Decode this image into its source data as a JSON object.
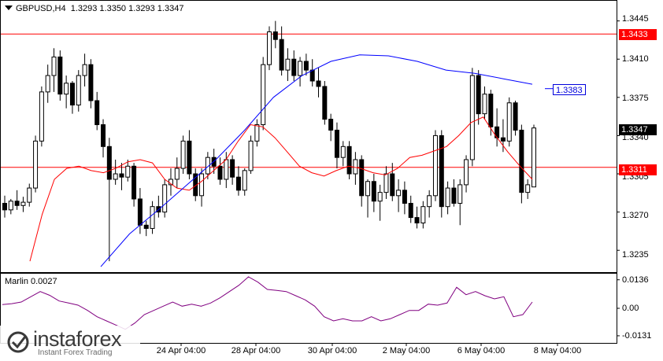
{
  "window": {
    "title": "GBPUSD,H4",
    "ohlc": "1.3293 1.3350 1.3293 1.3347"
  },
  "price_axis": {
    "ticks": [
      "1.3445",
      "1.3410",
      "1.3375",
      "1.3340",
      "1.3305",
      "1.3270",
      "1.3235"
    ]
  },
  "levels": {
    "resistance": "1.3433",
    "support": "1.3311",
    "current": "1.3347",
    "ma_blue": "1.3383"
  },
  "indicator": {
    "title": "Marlin 0.0027",
    "ticks": [
      "0.0136",
      "0.00",
      "-0.0131"
    ]
  },
  "time_axis": {
    "labels": [
      "24 Apr 04:00",
      "28 Apr 04:00",
      "30 Apr 04:00",
      "2 May 04:00",
      "6 May 04:00",
      "8 May 04:00"
    ]
  },
  "watermark": {
    "brand": "instaforex",
    "tagline": "Instant Forex Trading"
  },
  "colors": {
    "bull": "#ffffff",
    "bear": "#000000",
    "level_line": "#ff0000",
    "ma_red": "#ff0000",
    "ma_blue": "#0000ff",
    "indicator": "#800080",
    "grid_frame": "#000000"
  },
  "chart_data": {
    "type": "candlestick",
    "symbol": "GBPUSD",
    "timeframe": "H4",
    "ylim": [
      1.3215,
      1.3462
    ],
    "candles": [
      [
        1.3278,
        1.3285,
        1.3265,
        1.3272
      ],
      [
        1.3272,
        1.3282,
        1.3268,
        1.328
      ],
      [
        1.328,
        1.329,
        1.3272,
        1.3276
      ],
      [
        1.3276,
        1.3284,
        1.327,
        1.3279
      ],
      [
        1.3279,
        1.3296,
        1.3275,
        1.3292
      ],
      [
        1.3292,
        1.334,
        1.3288,
        1.3335
      ],
      [
        1.3335,
        1.3385,
        1.333,
        1.338
      ],
      [
        1.338,
        1.3405,
        1.337,
        1.3395
      ],
      [
        1.3395,
        1.342,
        1.338,
        1.3412
      ],
      [
        1.3412,
        1.3418,
        1.3372,
        1.3378
      ],
      [
        1.3378,
        1.3395,
        1.3365,
        1.3388
      ],
      [
        1.3388,
        1.339,
        1.336,
        1.3368
      ],
      [
        1.3368,
        1.34,
        1.3362,
        1.3395
      ],
      [
        1.3395,
        1.3415,
        1.3385,
        1.3405
      ],
      [
        1.3405,
        1.341,
        1.3365,
        1.3372
      ],
      [
        1.3372,
        1.338,
        1.3345,
        1.335
      ],
      [
        1.335,
        1.3355,
        1.332,
        1.333
      ],
      [
        1.333,
        1.3338,
        1.3225,
        1.33
      ],
      [
        1.33,
        1.3318,
        1.3295,
        1.3305
      ],
      [
        1.3305,
        1.3315,
        1.329,
        1.3302
      ],
      [
        1.3302,
        1.3318,
        1.3298,
        1.3312
      ],
      [
        1.3312,
        1.3315,
        1.3275,
        1.3282
      ],
      [
        1.3282,
        1.3292,
        1.325,
        1.3258
      ],
      [
        1.3258,
        1.3262,
        1.3248,
        1.3255
      ],
      [
        1.3255,
        1.328,
        1.325,
        1.3275
      ],
      [
        1.3275,
        1.3285,
        1.3265,
        1.327
      ],
      [
        1.327,
        1.33,
        1.3265,
        1.3295
      ],
      [
        1.3295,
        1.331,
        1.3285,
        1.33
      ],
      [
        1.33,
        1.332,
        1.3292,
        1.331
      ],
      [
        1.331,
        1.334,
        1.3305,
        1.3335
      ],
      [
        1.3335,
        1.3345,
        1.33,
        1.3305
      ],
      [
        1.3305,
        1.331,
        1.328,
        1.3285
      ],
      [
        1.3285,
        1.331,
        1.3275,
        1.3305
      ],
      [
        1.3305,
        1.3325,
        1.33,
        1.332
      ],
      [
        1.332,
        1.3328,
        1.3305,
        1.3312
      ],
      [
        1.3312,
        1.332,
        1.3295,
        1.33
      ],
      [
        1.33,
        1.3325,
        1.3292,
        1.3318
      ],
      [
        1.3318,
        1.3322,
        1.3295,
        1.3302
      ],
      [
        1.3302,
        1.3312,
        1.3285,
        1.329
      ],
      [
        1.329,
        1.331,
        1.3285,
        1.3308
      ],
      [
        1.3308,
        1.334,
        1.3305,
        1.3335
      ],
      [
        1.3335,
        1.3355,
        1.333,
        1.335
      ],
      [
        1.335,
        1.3412,
        1.3345,
        1.3405
      ],
      [
        1.3405,
        1.344,
        1.34,
        1.3435
      ],
      [
        1.3435,
        1.3445,
        1.342,
        1.3428
      ],
      [
        1.3428,
        1.344,
        1.3395,
        1.34
      ],
      [
        1.34,
        1.342,
        1.339,
        1.341
      ],
      [
        1.341,
        1.3418,
        1.339,
        1.3395
      ],
      [
        1.3395,
        1.3412,
        1.3385,
        1.3408
      ],
      [
        1.3408,
        1.3415,
        1.3395,
        1.34
      ],
      [
        1.34,
        1.341,
        1.3385,
        1.339
      ],
      [
        1.339,
        1.3402,
        1.3375,
        1.3385
      ],
      [
        1.3385,
        1.339,
        1.335,
        1.3355
      ],
      [
        1.3355,
        1.336,
        1.3335,
        1.3345
      ],
      [
        1.3345,
        1.3352,
        1.331,
        1.332
      ],
      [
        1.332,
        1.3335,
        1.3312,
        1.333
      ],
      [
        1.333,
        1.3335,
        1.33,
        1.3305
      ],
      [
        1.3305,
        1.3325,
        1.3295,
        1.3318
      ],
      [
        1.3318,
        1.3322,
        1.3275,
        1.3285
      ],
      [
        1.3285,
        1.33,
        1.3265,
        1.3298
      ],
      [
        1.3298,
        1.3305,
        1.327,
        1.328
      ],
      [
        1.328,
        1.3295,
        1.3262,
        1.3288
      ],
      [
        1.3288,
        1.3312,
        1.3282,
        1.3305
      ],
      [
        1.3305,
        1.3315,
        1.328,
        1.3285
      ],
      [
        1.3285,
        1.33,
        1.327,
        1.329
      ],
      [
        1.329,
        1.3298,
        1.3268,
        1.3278
      ],
      [
        1.3278,
        1.3285,
        1.326,
        1.3265
      ],
      [
        1.3265,
        1.3275,
        1.3255,
        1.326
      ],
      [
        1.326,
        1.328,
        1.3255,
        1.3275
      ],
      [
        1.3275,
        1.329,
        1.3265,
        1.3285
      ],
      [
        1.3285,
        1.3345,
        1.328,
        1.334
      ],
      [
        1.334,
        1.3345,
        1.3265,
        1.3275
      ],
      [
        1.3275,
        1.3298,
        1.3268,
        1.3292
      ],
      [
        1.3292,
        1.33,
        1.3275,
        1.3278
      ],
      [
        1.3278,
        1.33,
        1.3258,
        1.3295
      ],
      [
        1.3295,
        1.3322,
        1.3288,
        1.3318
      ],
      [
        1.3318,
        1.3402,
        1.3312,
        1.3395
      ],
      [
        1.3395,
        1.34,
        1.335,
        1.336
      ],
      [
        1.336,
        1.3385,
        1.3355,
        1.3378
      ],
      [
        1.3378,
        1.3382,
        1.334,
        1.3348
      ],
      [
        1.3348,
        1.3365,
        1.333,
        1.3338
      ],
      [
        1.3338,
        1.3355,
        1.3325,
        1.3335
      ],
      [
        1.3335,
        1.3375,
        1.333,
        1.337
      ],
      [
        1.337,
        1.3372,
        1.334,
        1.3345
      ],
      [
        1.3345,
        1.335,
        1.3278,
        1.3288
      ],
      [
        1.3288,
        1.33,
        1.3282,
        1.3295
      ],
      [
        1.3293,
        1.335,
        1.3293,
        1.3347
      ]
    ],
    "ma_red": [
      1.3225,
      1.3268,
      1.33,
      1.331,
      1.3312,
      1.3308,
      1.3306,
      1.331,
      1.3316,
      1.3318,
      1.3315,
      1.33,
      1.3292,
      1.329,
      1.3298,
      1.3308,
      1.3318,
      1.3335,
      1.335,
      1.3348,
      1.3338,
      1.3325,
      1.3312,
      1.3306,
      1.3303,
      1.3308,
      1.3312,
      1.331,
      1.3306,
      1.3304,
      1.331,
      1.332,
      1.3322,
      1.3326,
      1.333,
      1.334,
      1.3352,
      1.3357,
      1.334,
      1.3325,
      1.3312,
      1.33
    ],
    "ma_blue": [
      1.322,
      1.325,
      1.3272,
      1.3295,
      1.3318,
      1.3345,
      1.3375,
      1.3395,
      1.3408,
      1.3414,
      1.3413,
      1.3408,
      1.34,
      1.3397,
      1.3392,
      1.3387
    ],
    "marlin": {
      "ylim": [
        -0.0165,
        0.0165
      ],
      "values": [
        0.0018,
        0.0022,
        0.003,
        0.0055,
        0.008,
        0.0062,
        0.0035,
        0.0025,
        0.0015,
        -0.001,
        -0.004,
        -0.006,
        -0.008,
        -0.01,
        -0.007,
        -0.003,
        -0.001,
        0.001,
        0.003,
        0.001,
        0.002,
        0.001,
        0.0025,
        0.005,
        0.008,
        0.011,
        0.015,
        0.0125,
        0.009,
        0.0085,
        0.008,
        0.006,
        0.004,
        0.001,
        -0.004,
        -0.006,
        -0.005,
        -0.006,
        -0.006,
        -0.004,
        -0.006,
        -0.005,
        -0.003,
        -0.001,
        -0.001,
        0.002,
        0.0015,
        0.0025,
        0.01,
        0.0065,
        0.008,
        0.006,
        0.0045,
        0.0055,
        -0.004,
        -0.003,
        0.003
      ]
    }
  }
}
